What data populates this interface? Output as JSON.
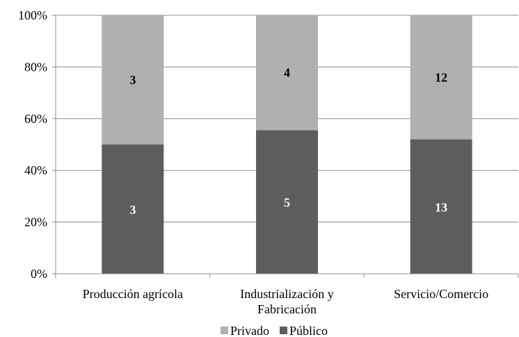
{
  "colors": {
    "privado": "#b0b0b0",
    "publico": "#5d5d5d",
    "axis": "#8c8c8c",
    "grid": "#8c8c8c",
    "label_on_dark": "#ffffff",
    "label_on_light": "#000000"
  },
  "chart_data": {
    "type": "bar",
    "stacked": true,
    "normalized": true,
    "title": "",
    "xlabel": "",
    "ylabel": "",
    "ylim": [
      0,
      100
    ],
    "yticks": [
      "0%",
      "20%",
      "40%",
      "60%",
      "80%",
      "100%"
    ],
    "grid": true,
    "legend_position": "bottom",
    "categories": [
      [
        "Producción agrícola"
      ],
      [
        "Industrialización y",
        "Fabricación"
      ],
      [
        "Servicio/Comercio"
      ]
    ],
    "series": [
      {
        "name": "Público",
        "values": [
          3,
          5,
          13
        ],
        "labels": [
          "3",
          "5",
          "13"
        ]
      },
      {
        "name": "Privado",
        "values": [
          3,
          4,
          12
        ],
        "labels": [
          "3",
          "4",
          "12"
        ]
      }
    ],
    "legend": [
      "Privado",
      "Público"
    ]
  }
}
